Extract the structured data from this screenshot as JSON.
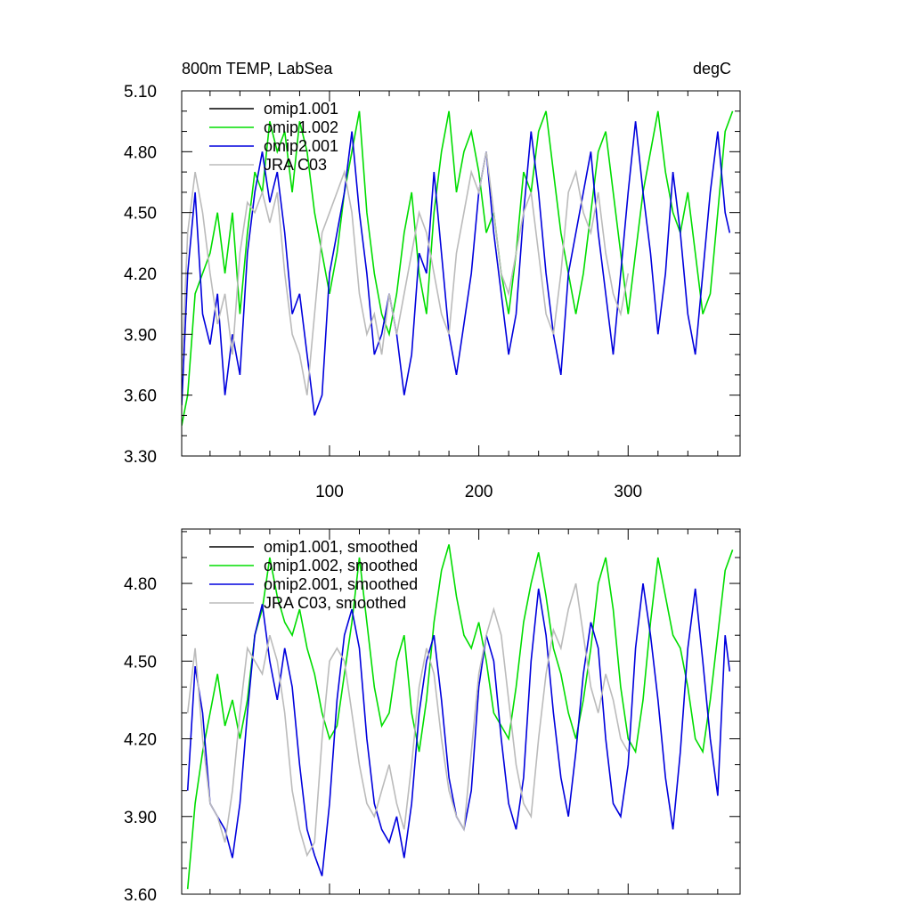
{
  "chart_data": [
    {
      "type": "line",
      "title_left": "800m TEMP, LabSea",
      "title_right": "degC",
      "xlabel": "",
      "ylabel": "",
      "xlim": [
        1,
        375
      ],
      "ylim": [
        3.3,
        5.1
      ],
      "xticks": [
        100,
        200,
        300
      ],
      "xtick_labels": [
        "100",
        "200",
        "300"
      ],
      "yticks": [
        3.3,
        3.6,
        3.9,
        4.2,
        4.5,
        4.8,
        5.1
      ],
      "ytick_labels": [
        "3.30",
        "3.60",
        "3.90",
        "4.20",
        "4.50",
        "4.80",
        "5.10"
      ],
      "legend_position": "top-left",
      "series": [
        {
          "name": "omip1.001",
          "color": "#000000",
          "x": [],
          "values": []
        },
        {
          "name": "omip1.002",
          "color": "#00dd00",
          "x": [
            1,
            5,
            10,
            15,
            20,
            25,
            30,
            35,
            40,
            45,
            50,
            55,
            60,
            65,
            70,
            75,
            80,
            85,
            90,
            95,
            100,
            105,
            110,
            115,
            120,
            125,
            130,
            135,
            140,
            145,
            150,
            155,
            160,
            165,
            170,
            175,
            180,
            185,
            190,
            195,
            200,
            205,
            210,
            215,
            220,
            225,
            230,
            235,
            240,
            245,
            250,
            255,
            260,
            265,
            270,
            275,
            280,
            285,
            290,
            295,
            300,
            305,
            310,
            315,
            320,
            325,
            330,
            335,
            340,
            345,
            350,
            355,
            360,
            365,
            370
          ],
          "values": [
            3.45,
            3.6,
            4.1,
            4.2,
            4.3,
            4.5,
            4.2,
            4.5,
            4.0,
            4.4,
            4.7,
            4.6,
            4.95,
            4.8,
            4.9,
            4.6,
            4.95,
            4.8,
            4.5,
            4.3,
            4.1,
            4.3,
            4.6,
            4.8,
            5.0,
            4.5,
            4.2,
            4.0,
            3.9,
            4.1,
            4.4,
            4.6,
            4.2,
            4.0,
            4.5,
            4.8,
            5.0,
            4.6,
            4.8,
            4.9,
            4.7,
            4.4,
            4.5,
            4.2,
            4.0,
            4.3,
            4.7,
            4.6,
            4.9,
            5.0,
            4.7,
            4.4,
            4.2,
            4.0,
            4.2,
            4.5,
            4.8,
            4.9,
            4.6,
            4.3,
            4.0,
            4.3,
            4.6,
            4.8,
            5.0,
            4.7,
            4.5,
            4.4,
            4.6,
            4.3,
            4.0,
            4.1,
            4.5,
            4.9,
            5.0
          ]
        },
        {
          "name": "omip2.001",
          "color": "#0000dd",
          "x": [
            1,
            5,
            10,
            15,
            20,
            25,
            30,
            35,
            40,
            45,
            50,
            55,
            60,
            65,
            70,
            75,
            80,
            85,
            90,
            95,
            100,
            105,
            110,
            115,
            120,
            125,
            130,
            135,
            140,
            145,
            150,
            155,
            160,
            165,
            170,
            175,
            180,
            185,
            190,
            195,
            200,
            205,
            210,
            215,
            220,
            225,
            230,
            235,
            240,
            245,
            250,
            255,
            260,
            265,
            270,
            275,
            280,
            285,
            290,
            295,
            300,
            305,
            310,
            315,
            320,
            325,
            330,
            335,
            340,
            345,
            350,
            355,
            360,
            365,
            368
          ],
          "values": [
            3.55,
            4.2,
            4.6,
            4.0,
            3.85,
            4.1,
            3.6,
            3.9,
            3.7,
            4.3,
            4.6,
            4.8,
            4.55,
            4.7,
            4.4,
            4.0,
            4.1,
            3.8,
            3.5,
            3.6,
            4.2,
            4.4,
            4.6,
            4.9,
            4.5,
            4.2,
            3.8,
            3.9,
            4.1,
            3.9,
            3.6,
            3.8,
            4.3,
            4.2,
            4.7,
            4.3,
            3.9,
            3.7,
            3.95,
            4.2,
            4.6,
            4.8,
            4.4,
            4.1,
            3.8,
            4.0,
            4.5,
            4.9,
            4.6,
            4.2,
            3.9,
            3.7,
            4.2,
            4.4,
            4.6,
            4.8,
            4.4,
            4.1,
            3.8,
            4.2,
            4.6,
            4.95,
            4.6,
            4.3,
            3.9,
            4.2,
            4.7,
            4.4,
            4.0,
            3.8,
            4.2,
            4.6,
            4.9,
            4.5,
            4.4
          ]
        },
        {
          "name": "JRA C03",
          "color": "#bbbbbb",
          "x": [
            1,
            5,
            10,
            15,
            20,
            25,
            30,
            35,
            40,
            45,
            50,
            55,
            60,
            65,
            70,
            75,
            80,
            85,
            90,
            95,
            100,
            105,
            110,
            115,
            120,
            125,
            130,
            135,
            140,
            145,
            150,
            155,
            160,
            165,
            170,
            175,
            180,
            185,
            190,
            195,
            200,
            205,
            210,
            215,
            220,
            225,
            230,
            235,
            240,
            245,
            250,
            255,
            260,
            265,
            270,
            275,
            280,
            285,
            290,
            295,
            300
          ],
          "values": [
            3.7,
            4.4,
            4.7,
            4.5,
            4.2,
            3.95,
            4.1,
            3.8,
            4.3,
            4.55,
            4.5,
            4.6,
            4.45,
            4.6,
            4.2,
            3.9,
            3.8,
            3.6,
            4.0,
            4.4,
            4.5,
            4.6,
            4.7,
            4.5,
            4.1,
            3.9,
            4.0,
            3.8,
            4.1,
            3.9,
            4.1,
            4.3,
            4.5,
            4.4,
            4.2,
            4.0,
            3.9,
            4.3,
            4.5,
            4.7,
            4.6,
            4.8,
            4.5,
            4.2,
            4.1,
            4.3,
            4.5,
            4.6,
            4.3,
            4.0,
            3.9,
            4.2,
            4.6,
            4.7,
            4.5,
            4.4,
            4.6,
            4.3,
            4.1,
            4.0,
            4.2
          ]
        }
      ]
    },
    {
      "type": "line",
      "title_left": "",
      "title_right": "",
      "xlabel": "",
      "ylabel": "",
      "xlim": [
        1,
        375
      ],
      "ylim": [
        3.6,
        5.01
      ],
      "xticks": [
        100,
        200,
        300
      ],
      "xtick_labels": [],
      "yticks": [
        3.6,
        3.9,
        4.2,
        4.5,
        4.8
      ],
      "ytick_labels": [
        "3.60",
        "3.90",
        "4.20",
        "4.50",
        "4.80"
      ],
      "legend_position": "top-left",
      "series": [
        {
          "name": "omip1.001, smoothed",
          "color": "#000000",
          "x": [],
          "values": []
        },
        {
          "name": "omip1.002, smoothed",
          "color": "#00dd00",
          "x": [
            5,
            10,
            15,
            20,
            25,
            30,
            35,
            40,
            45,
            50,
            55,
            60,
            65,
            70,
            75,
            80,
            85,
            90,
            95,
            100,
            105,
            110,
            115,
            120,
            125,
            130,
            135,
            140,
            145,
            150,
            155,
            160,
            165,
            170,
            175,
            180,
            185,
            190,
            195,
            200,
            205,
            210,
            215,
            220,
            225,
            230,
            235,
            240,
            245,
            250,
            255,
            260,
            265,
            270,
            275,
            280,
            285,
            290,
            295,
            300,
            305,
            310,
            315,
            320,
            325,
            330,
            335,
            340,
            345,
            350,
            355,
            360,
            365,
            370
          ],
          "values": [
            3.62,
            3.95,
            4.15,
            4.3,
            4.45,
            4.25,
            4.35,
            4.2,
            4.35,
            4.6,
            4.7,
            4.9,
            4.75,
            4.65,
            4.6,
            4.7,
            4.55,
            4.45,
            4.3,
            4.2,
            4.25,
            4.45,
            4.65,
            4.9,
            4.65,
            4.4,
            4.25,
            4.3,
            4.5,
            4.6,
            4.3,
            4.15,
            4.35,
            4.65,
            4.85,
            4.95,
            4.75,
            4.6,
            4.55,
            4.65,
            4.5,
            4.3,
            4.25,
            4.2,
            4.4,
            4.65,
            4.8,
            4.92,
            4.75,
            4.55,
            4.45,
            4.3,
            4.2,
            4.35,
            4.55,
            4.8,
            4.9,
            4.7,
            4.4,
            4.2,
            4.15,
            4.35,
            4.65,
            4.9,
            4.75,
            4.6,
            4.55,
            4.4,
            4.2,
            4.15,
            4.35,
            4.6,
            4.85,
            4.93
          ]
        },
        {
          "name": "omip2.001, smoothed",
          "color": "#0000dd",
          "x": [
            5,
            10,
            15,
            20,
            25,
            30,
            35,
            40,
            45,
            50,
            55,
            60,
            65,
            70,
            75,
            80,
            85,
            90,
            95,
            100,
            105,
            110,
            115,
            120,
            125,
            130,
            135,
            140,
            145,
            150,
            155,
            160,
            165,
            170,
            175,
            180,
            185,
            190,
            195,
            200,
            205,
            210,
            215,
            220,
            225,
            230,
            235,
            240,
            245,
            250,
            255,
            260,
            265,
            270,
            275,
            280,
            285,
            290,
            295,
            300,
            305,
            310,
            315,
            320,
            325,
            330,
            335,
            340,
            345,
            350,
            355,
            360,
            365,
            368
          ],
          "values": [
            4.0,
            4.48,
            4.3,
            3.95,
            3.9,
            3.85,
            3.74,
            3.95,
            4.3,
            4.6,
            4.72,
            4.5,
            4.35,
            4.55,
            4.4,
            4.1,
            3.85,
            3.75,
            3.67,
            3.95,
            4.35,
            4.6,
            4.7,
            4.55,
            4.2,
            3.95,
            3.85,
            3.8,
            3.9,
            3.74,
            3.95,
            4.3,
            4.5,
            4.6,
            4.35,
            4.05,
            3.9,
            3.85,
            4.0,
            4.4,
            4.6,
            4.5,
            4.2,
            3.95,
            3.85,
            4.05,
            4.5,
            4.78,
            4.6,
            4.3,
            4.05,
            3.9,
            4.15,
            4.45,
            4.65,
            4.55,
            4.2,
            3.95,
            3.9,
            4.1,
            4.55,
            4.8,
            4.6,
            4.35,
            4.05,
            3.85,
            4.15,
            4.55,
            4.78,
            4.5,
            4.2,
            3.98,
            4.6,
            4.46
          ]
        },
        {
          "name": "JRA C03, smoothed",
          "color": "#bbbbbb",
          "x": [
            5,
            10,
            15,
            20,
            25,
            30,
            35,
            40,
            45,
            50,
            55,
            60,
            65,
            70,
            75,
            80,
            85,
            90,
            95,
            100,
            105,
            110,
            115,
            120,
            125,
            130,
            135,
            140,
            145,
            150,
            155,
            160,
            165,
            170,
            175,
            180,
            185,
            190,
            195,
            200,
            205,
            210,
            215,
            220,
            225,
            230,
            235,
            240,
            245,
            250,
            255,
            260,
            265,
            270,
            275,
            280,
            285,
            290,
            295,
            300
          ],
          "values": [
            4.3,
            4.55,
            4.2,
            3.95,
            3.9,
            3.8,
            4.0,
            4.3,
            4.55,
            4.5,
            4.45,
            4.6,
            4.5,
            4.3,
            4.0,
            3.85,
            3.75,
            3.8,
            4.2,
            4.5,
            4.55,
            4.5,
            4.3,
            4.1,
            3.95,
            3.9,
            4.0,
            4.1,
            3.95,
            3.85,
            4.1,
            4.4,
            4.55,
            4.45,
            4.2,
            4.0,
            3.9,
            3.85,
            4.15,
            4.45,
            4.6,
            4.7,
            4.6,
            4.35,
            4.1,
            3.95,
            3.9,
            4.2,
            4.45,
            4.62,
            4.55,
            4.7,
            4.8,
            4.6,
            4.4,
            4.3,
            4.45,
            4.35,
            4.2,
            4.15
          ]
        }
      ]
    }
  ]
}
